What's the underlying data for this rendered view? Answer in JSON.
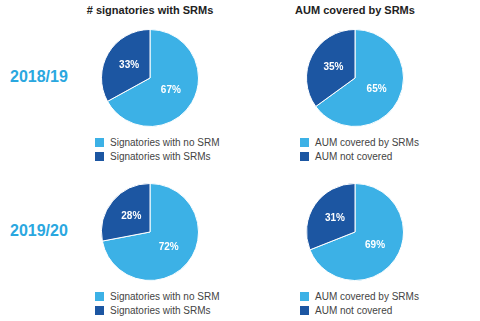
{
  "column_titles": [
    "# signatories with SRMs",
    "AUM covered by SRMs"
  ],
  "row_labels": [
    "2018/19",
    "2019/20"
  ],
  "chart_data": [
    {
      "type": "pie",
      "categories": [
        "Signatories with no SRM",
        "Signatories with SRMs"
      ],
      "values": [
        67,
        33
      ],
      "value_labels": [
        "67%",
        "33%"
      ],
      "colors": [
        "#3cb1e6",
        "#1c56a2"
      ],
      "data_labels": true,
      "legend": "bottom"
    },
    {
      "type": "pie",
      "categories": [
        "AUM covered by SRMs",
        "AUM not covered"
      ],
      "values": [
        65,
        35
      ],
      "value_labels": [
        "65%",
        "35%"
      ],
      "colors": [
        "#3cb1e6",
        "#1c56a2"
      ],
      "data_labels": true,
      "legend": "bottom"
    },
    {
      "type": "pie",
      "categories": [
        "Signatories with no SRM",
        "Signatories with SRMs"
      ],
      "values": [
        72,
        28
      ],
      "value_labels": [
        "72%",
        "28%"
      ],
      "colors": [
        "#3cb1e6",
        "#1c56a2"
      ],
      "data_labels": true,
      "legend": "bottom"
    },
    {
      "type": "pie",
      "categories": [
        "AUM covered by SRMs",
        "AUM not covered"
      ],
      "values": [
        69,
        31
      ],
      "value_labels": [
        "69%",
        "31%"
      ],
      "colors": [
        "#3cb1e6",
        "#1c56a2"
      ],
      "data_labels": true,
      "legend": "bottom"
    }
  ]
}
